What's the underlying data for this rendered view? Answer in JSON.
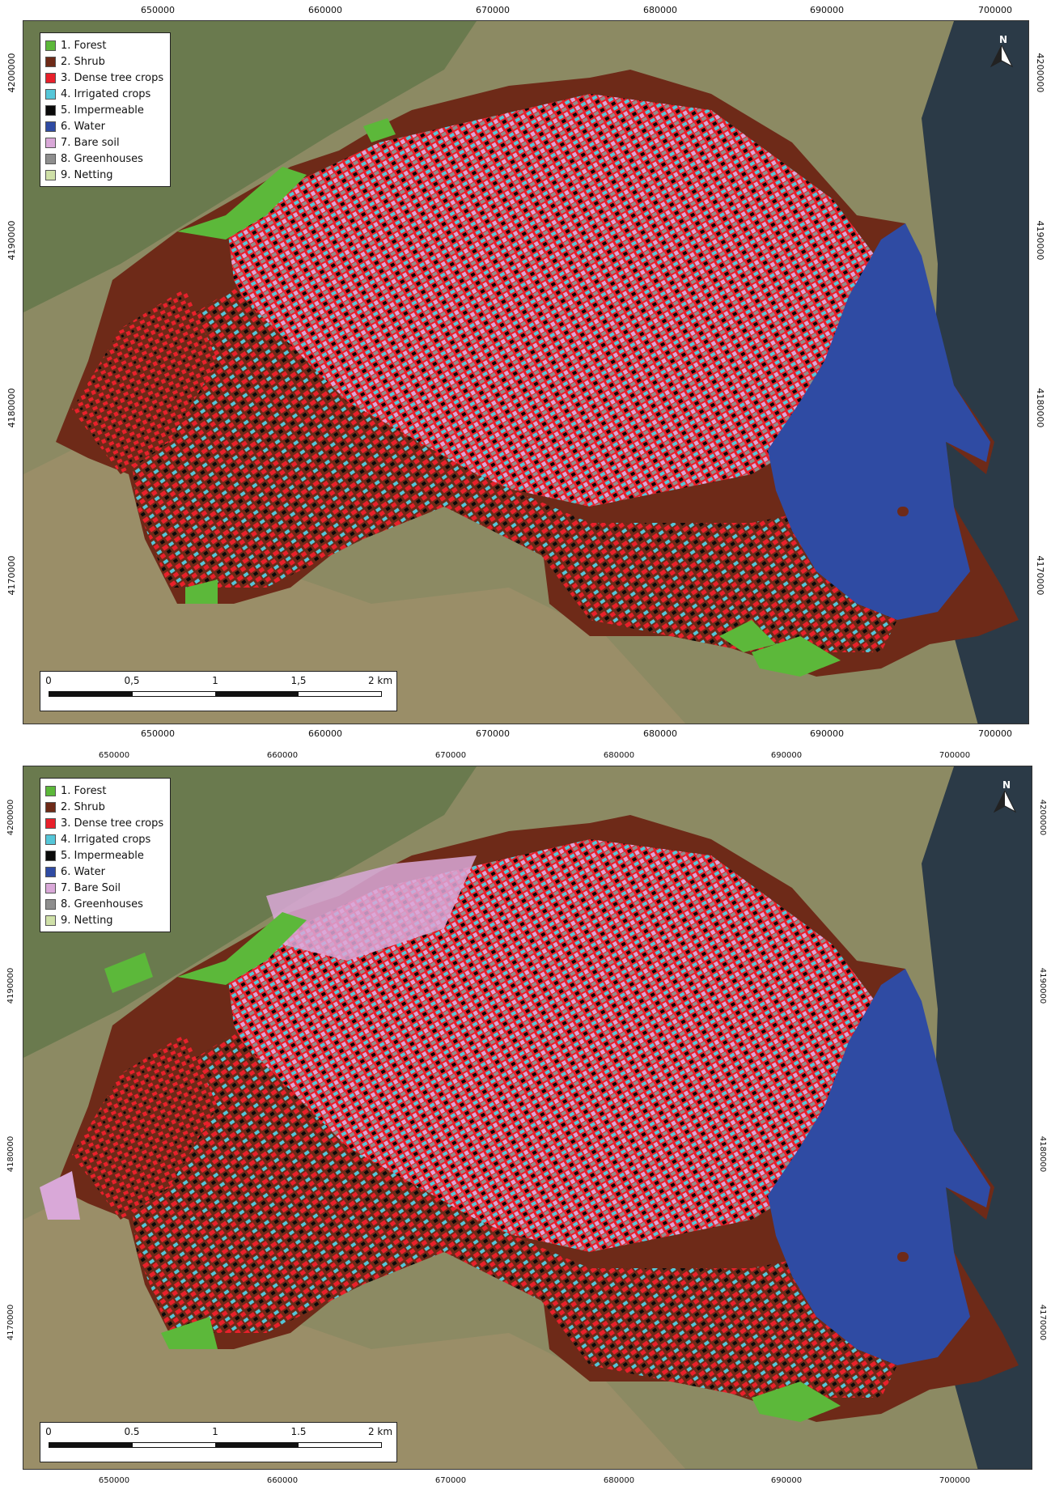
{
  "maps": [
    {
      "x_ticks": [
        "650000",
        "660000",
        "670000",
        "680000",
        "690000",
        "700000"
      ],
      "y_ticks": [
        "4200000",
        "4190000",
        "4180000",
        "4170000"
      ],
      "legend": [
        {
          "label": "1. Forest",
          "color": "#5cb83a"
        },
        {
          "label": "2. Shrub",
          "color": "#6e2a18"
        },
        {
          "label": "3. Dense tree crops",
          "color": "#e8202b"
        },
        {
          "label": "4. Irrigated crops",
          "color": "#55c6d8"
        },
        {
          "label": "5. Impermeable",
          "color": "#0a0a0a"
        },
        {
          "label": "6. Water",
          "color": "#2f4ba3"
        },
        {
          "label": "7. Bare soil",
          "color": "#d9a8d8"
        },
        {
          "label": "8. Greenhouses",
          "color": "#8e8e8e"
        },
        {
          "label": "9. Netting",
          "color": "#cfe0a8"
        }
      ],
      "scale_labels": [
        "0",
        "0,5",
        "1",
        "1,5",
        "2 km"
      ],
      "north_label": "N"
    },
    {
      "x_ticks": [
        "650000",
        "660000",
        "670000",
        "680000",
        "690000",
        "700000"
      ],
      "y_ticks": [
        "4200000",
        "4190000",
        "4180000",
        "4170000"
      ],
      "legend": [
        {
          "label": "1. Forest",
          "color": "#5cb83a"
        },
        {
          "label": "2. Shrub",
          "color": "#6e2a18"
        },
        {
          "label": "3. Dense tree crops",
          "color": "#e8202b"
        },
        {
          "label": "4. Irrigated crops",
          "color": "#55c6d8"
        },
        {
          "label": "5. Impermeable",
          "color": "#0a0a0a"
        },
        {
          "label": "6. Water",
          "color": "#2f4ba3"
        },
        {
          "label": "7. Bare Soil",
          "color": "#d9a8d8"
        },
        {
          "label": "8. Greenhouses",
          "color": "#8e8e8e"
        },
        {
          "label": "9. Netting",
          "color": "#cfe0a8"
        }
      ],
      "scale_labels": [
        "0",
        "0.5",
        "1",
        "1.5",
        "2 km"
      ],
      "north_label": "N"
    }
  ],
  "colors": {
    "background_land": "#8a8a62",
    "sea": "#2b3a47",
    "study_area_base": "#6e2a18"
  }
}
